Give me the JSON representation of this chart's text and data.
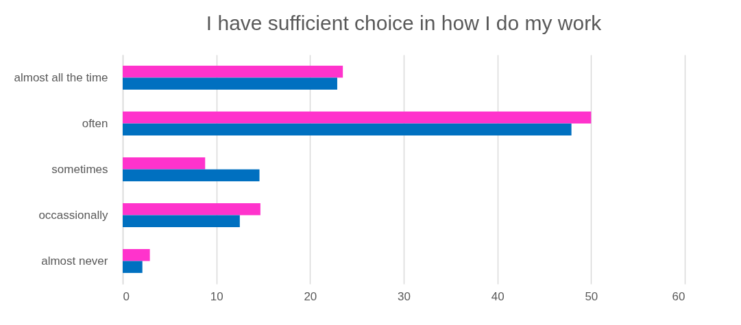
{
  "chart_data": {
    "type": "bar",
    "orientation": "horizontal",
    "title": "I have sufficient choice in how I do my work",
    "categories": [
      "almost all the time",
      "often",
      "sometimes",
      "occassionally",
      "almost never"
    ],
    "series": [
      {
        "color": "#ff33cc",
        "values": [
          23.5,
          50,
          8.8,
          14.7,
          2.9
        ]
      },
      {
        "color": "#0070c0",
        "values": [
          22.9,
          47.9,
          14.6,
          12.5,
          2.1
        ]
      }
    ],
    "xlim": [
      0,
      60
    ],
    "xticks": [
      0,
      10,
      20,
      30,
      40,
      50,
      60
    ],
    "grid": "x",
    "legend": false
  }
}
